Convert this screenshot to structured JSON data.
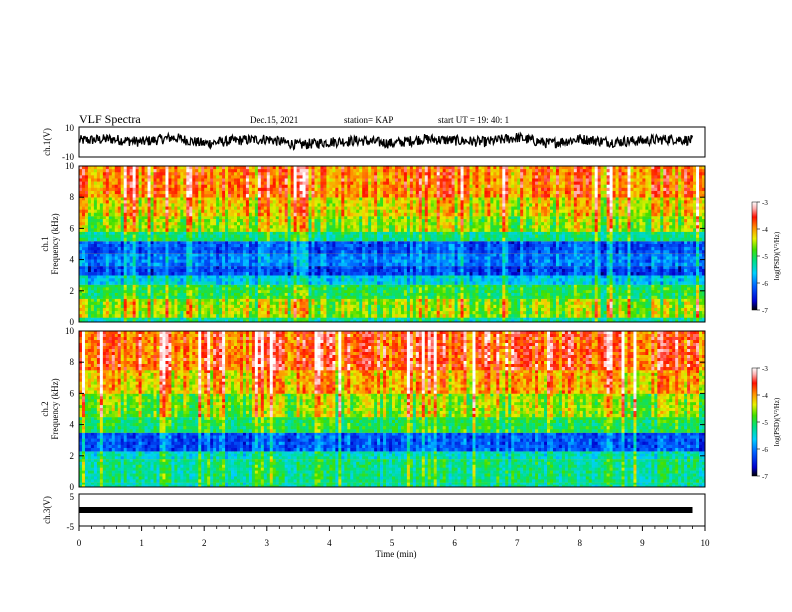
{
  "header": {
    "title": "VLF Spectra",
    "date": "Dec.15, 2021",
    "station": "station= KAP",
    "start_ut": "start  UT =   19: 40: 1"
  },
  "chart_data": [
    {
      "id": "ch1-waveform",
      "type": "line",
      "ylabel": "ch.1(V)",
      "ylim": [
        -10,
        10
      ],
      "yticks": [
        "10",
        "-10"
      ],
      "xlim": [
        0,
        10
      ],
      "x_label_shown": false,
      "series": [
        {
          "color": "#000000",
          "description_only": false,
          "x": [
            0,
            0.5,
            1,
            1.5,
            2,
            2.5,
            3,
            3.5,
            4,
            4.5,
            5,
            5.5,
            6,
            6.5,
            7,
            7.5,
            8,
            8.5,
            9,
            9.5,
            9.8
          ],
          "y": [
            1,
            2,
            0,
            3,
            -1,
            1,
            2,
            -2,
            0,
            1,
            -1,
            2,
            1,
            0,
            3,
            -1,
            2,
            0,
            1,
            2,
            1
          ]
        }
      ]
    },
    {
      "id": "ch1-spectrogram",
      "type": "heatmap",
      "ylabel": "Frequency (kHz)",
      "ylabel2": "ch.1",
      "ylim": [
        0,
        10
      ],
      "yticks": [
        "0",
        "2",
        "4",
        "6",
        "8",
        "10"
      ],
      "xlim": [
        0,
        10
      ],
      "colorbar": {
        "label": "log(PSD)(V²/Hz)",
        "range": [
          -7,
          -3
        ],
        "ticks": [
          "-3",
          "-4",
          "-5",
          "-6",
          "-7"
        ]
      },
      "bands_khz": [
        {
          "from": 0,
          "to": 0.3,
          "level": -5.3
        },
        {
          "from": 0.3,
          "to": 1.5,
          "level": -4.6
        },
        {
          "from": 1.5,
          "to": 2.4,
          "level": -5.0
        },
        {
          "from": 2.4,
          "to": 3.0,
          "level": -5.6
        },
        {
          "from": 3.0,
          "to": 3.6,
          "level": -6.3
        },
        {
          "from": 3.6,
          "to": 4.4,
          "level": -6.0
        },
        {
          "from": 4.4,
          "to": 5.2,
          "level": -6.2
        },
        {
          "from": 5.2,
          "to": 5.8,
          "level": -5.2
        },
        {
          "from": 5.8,
          "to": 6.8,
          "level": -4.6
        },
        {
          "from": 6.8,
          "to": 8.0,
          "level": -4.3
        },
        {
          "from": 8.0,
          "to": 10,
          "level": -3.9
        }
      ]
    },
    {
      "id": "ch2-spectrogram",
      "type": "heatmap",
      "ylabel": "Frequency (kHz)",
      "ylabel2": "ch.2",
      "ylim": [
        0,
        10
      ],
      "yticks": [
        "0",
        "2",
        "4",
        "6",
        "8",
        "10"
      ],
      "xlim": [
        0,
        10
      ],
      "colorbar": {
        "label": "log(PSD)(V²/Hz)",
        "range": [
          -7,
          -3
        ],
        "ticks": [
          "-3",
          "-4",
          "-5",
          "-6",
          "-7"
        ]
      },
      "bands_khz": [
        {
          "from": 0,
          "to": 0.3,
          "level": -5.3
        },
        {
          "from": 0.3,
          "to": 1.8,
          "level": -5.2
        },
        {
          "from": 1.8,
          "to": 2.3,
          "level": -5.4
        },
        {
          "from": 2.3,
          "to": 3.5,
          "level": -6.2
        },
        {
          "from": 3.5,
          "to": 4.5,
          "level": -5.0
        },
        {
          "from": 4.5,
          "to": 6.0,
          "level": -4.6
        },
        {
          "from": 6.0,
          "to": 7.5,
          "level": -4.1
        },
        {
          "from": 7.5,
          "to": 10,
          "level": -3.7
        }
      ]
    },
    {
      "id": "ch3-waveform",
      "type": "line",
      "ylabel": "ch.3(V)",
      "ylim": [
        -5,
        5
      ],
      "yticks": [
        "5",
        "0",
        "-5"
      ],
      "xlim": [
        0,
        10
      ],
      "xlabel": "Time  (min)",
      "xticks": [
        "0",
        "1",
        "2",
        "3",
        "4",
        "5",
        "6",
        "7",
        "8",
        "9",
        "10"
      ],
      "series": [
        {
          "color": "#000000",
          "x": [
            0,
            9.8
          ],
          "y": [
            0,
            0
          ]
        }
      ]
    }
  ]
}
